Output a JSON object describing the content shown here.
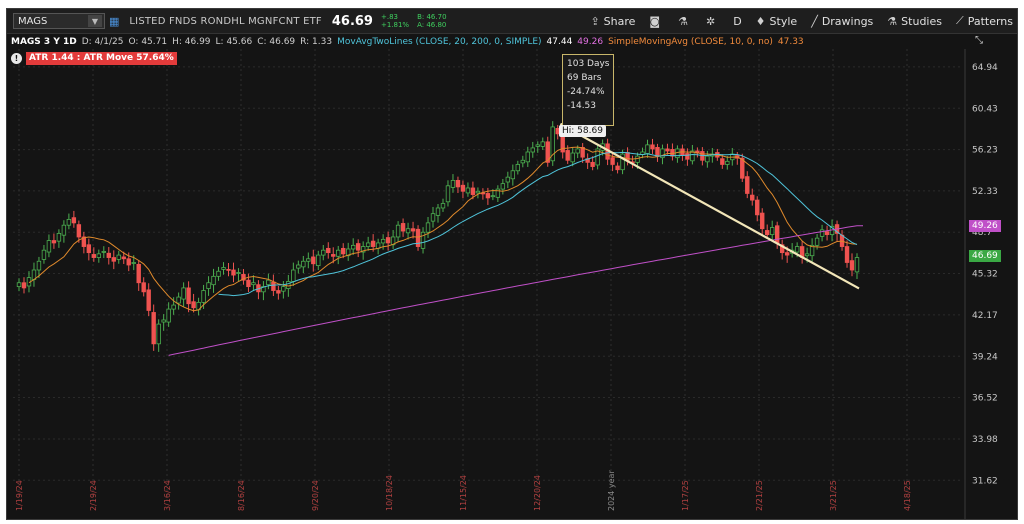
{
  "toolbar": {
    "symbol": "MAGS",
    "description": "LISTED FNDS RONDHL MGNFCNT ETF",
    "last": "46.69",
    "change": "+.83",
    "change_pct": "+1.81%",
    "bid": "B: 46.70",
    "ask": "A: 46.80",
    "share": "Share",
    "aggregation": "D",
    "style": "Style",
    "drawings": "Drawings",
    "studies": "Studies",
    "patterns": "Patterns"
  },
  "study_bar": {
    "title": "MAGS 3 Y 1D",
    "date": "D: 4/1/25",
    "open": "O: 45.71",
    "high": "H: 46.99",
    "low": "L: 45.66",
    "close": "C: 46.69",
    "range": "R: 1.33",
    "ma2_name": "MovAvgTwoLines (CLOSE, 20, 200, 0, SIMPLE)",
    "ma2_v1": "47.44",
    "ma2_v2": "49.26",
    "sma_name": "SimpleMovingAvg (CLOSE, 10, 0, no)",
    "sma_v": "47.33"
  },
  "atr": {
    "icon": "!",
    "label": "ATR 1.44 : ATR Move 57.64%"
  },
  "tooltip": {
    "days": "103 Days",
    "bars": "69 Bars",
    "pct": "-24.74%",
    "pts": "-14.53"
  },
  "hi_label": "Hi: 58.69",
  "price_labels": {
    "ma200": "49.26",
    "last": "46.69"
  },
  "colors": {
    "up": "#4caf50",
    "down": "#ef5350",
    "ma20": "#4fc3d9",
    "ma200": "#c050c8",
    "sma10": "#e08a2c",
    "trendline": "#f2e6b8"
  },
  "chart_data": {
    "type": "candlestick",
    "y_ticks": [
      "64.94",
      "60.43",
      "56.23",
      "52.33",
      "48.7",
      "45.32",
      "42.17",
      "39.24",
      "36.52",
      "33.98",
      "31.62"
    ],
    "x_ticks": [
      "1/19/24",
      "2/19/24",
      "3/16/24",
      "8/16/24",
      "9/20/24",
      "10/18/24",
      "11/15/24",
      "12/20/24",
      "2024 year",
      "1/17/25",
      "2/21/25",
      "3/21/25",
      "4/18/25"
    ],
    "axis_range": [
      30.5,
      67.0
    ],
    "log_scale": true,
    "closes": [
      44.6,
      44.2,
      45.0,
      45.6,
      46.3,
      47.2,
      48.0,
      47.8,
      48.6,
      49.3,
      49.8,
      49.5,
      48.3,
      47.5,
      47.0,
      46.6,
      46.9,
      47.1,
      46.6,
      46.3,
      46.8,
      46.5,
      46.0,
      46.2,
      44.6,
      43.9,
      42.5,
      40.1,
      41.5,
      41.8,
      42.6,
      42.9,
      43.5,
      44.2,
      43.0,
      42.7,
      43.1,
      44.0,
      44.6,
      45.1,
      45.5,
      45.8,
      45.6,
      45.2,
      45.4,
      44.8,
      44.3,
      44.6,
      43.9,
      44.3,
      44.8,
      44.0,
      43.8,
      44.3,
      44.7,
      45.6,
      46.0,
      46.3,
      46.5,
      46.1,
      46.8,
      47.2,
      47.0,
      46.7,
      47.2,
      46.9,
      47.3,
      47.6,
      47.2,
      47.5,
      47.8,
      47.5,
      47.8,
      48.1,
      47.8,
      48.3,
      49.3,
      48.8,
      49.0,
      48.8,
      47.5,
      48.7,
      49.5,
      50.3,
      50.8,
      51.2,
      52.8,
      53.3,
      52.7,
      52.3,
      52.6,
      52.0,
      52.3,
      52.1,
      51.7,
      51.9,
      52.5,
      53.0,
      53.6,
      54.2,
      54.8,
      55.2,
      56.0,
      56.4,
      56.7,
      57.0,
      55.0,
      58.5,
      57.8,
      56.0,
      55.2,
      55.9,
      56.3,
      55.5,
      55.0,
      54.6,
      56.3,
      56.8,
      55.3,
      54.8,
      54.3,
      55.8,
      55.2,
      55.0,
      55.6,
      56.0,
      56.7,
      56.3,
      55.6,
      56.3,
      56.1,
      55.6,
      56.3,
      55.7,
      55.3,
      56.1,
      55.9,
      55.2,
      55.6,
      55.8,
      55.5,
      54.8,
      55.1,
      55.8,
      55.4,
      53.5,
      52.1,
      51.5,
      50.2,
      49.0,
      48.5,
      49.1,
      47.8,
      47.0,
      46.8,
      47.2,
      47.5,
      46.6,
      46.9,
      47.6,
      48.2,
      48.9,
      48.5,
      49.2,
      48.6,
      47.5,
      46.2,
      45.6,
      46.6
    ]
  }
}
